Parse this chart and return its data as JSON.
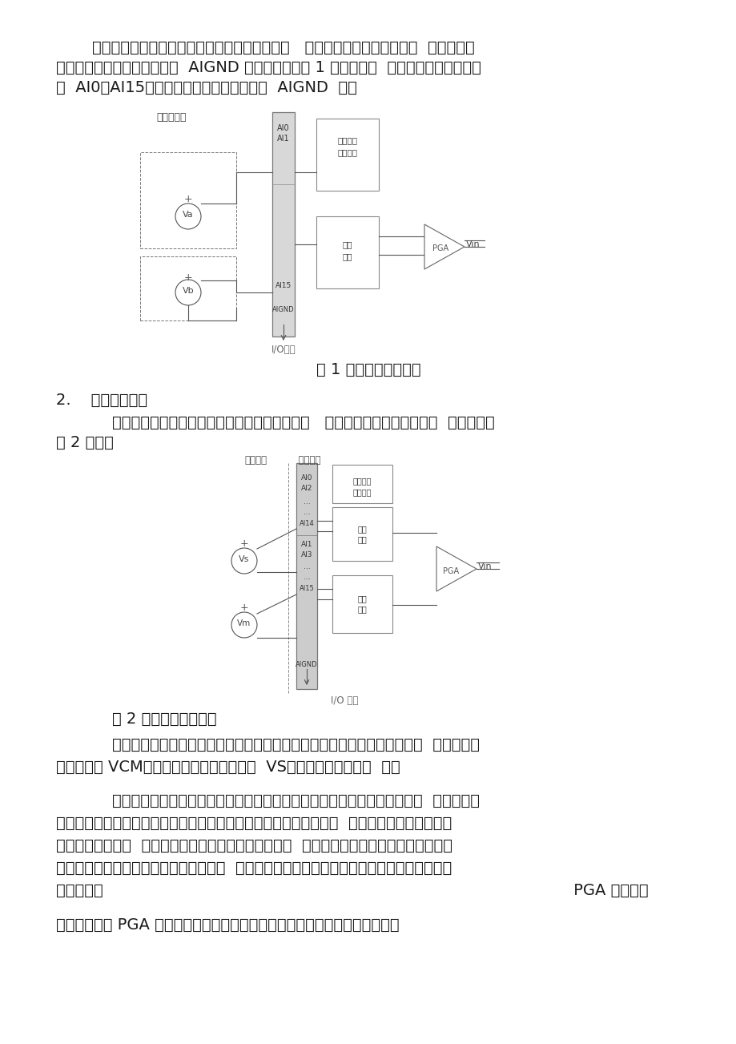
{
  "bg_color": "#ffffff",
  "text_color": "#1a1a1a",
  "fig_width": 9.2,
  "fig_height": 13.03,
  "dpi": 100,
  "paragraph1": "单端连接方式对每个通道来说只有一根信号线，   以及一根共同的地线构成回  路。被测的",
  "paragraph1b": "输入信号电压以板卡的模拟地  AIGND 为参考地。如图 1 所示，信号  源的正端连接到输入通",
  "paragraph1c": "道  AI0～AI15，信号源的负端连接到板卡的  AIGND  上。",
  "fig1_caption": "图 1 单端输入接线方式",
  "section2_title": "2.    差分连接方式",
  "paragraph2": "    差分连接方式的每个通道可以连接两根信号线，   来测量这两根信号线之间的  电压差，如",
  "paragraph2b": "图 2 所示。",
  "fig2_caption": "图 2 差分输入连接方式",
  "paragraph3": "    差分连接方式的优点通过差分放大器共模抑制的功能，消除共同包含在两个  输入信号中",
  "paragraph3b": "的共模成分 VCM，提取两个输入信号的差値  VS，从而区别信号和噪  声。",
  "paragraph4": "    如果输入信号的一端与信号源本身的参考地相连接，那么输入的这个信号为  对地参考的",
  "paragraph4b": "信号。由于输入信号的参考地和板卡的模拟地不一定是相同的电位，  因此在这两个地之间就会",
  "paragraph4c": "形成共模电势差。  为了避免由于共模电势差引起的地环  路噪声对测量的影响，可以连接输入",
  "paragraph4d": "信号的参考地端到差分输入同到的负输入  端。如果浮地信号被连接到差分输入通道，则信号源",
  "paragraph4e": "可能会超过                                                                                              PGA 的共模电",
  "paragraph4f": "压范围，此时 PGA 将会饱和并导致错误的测量结果，因此在连接浮地信号时，"
}
